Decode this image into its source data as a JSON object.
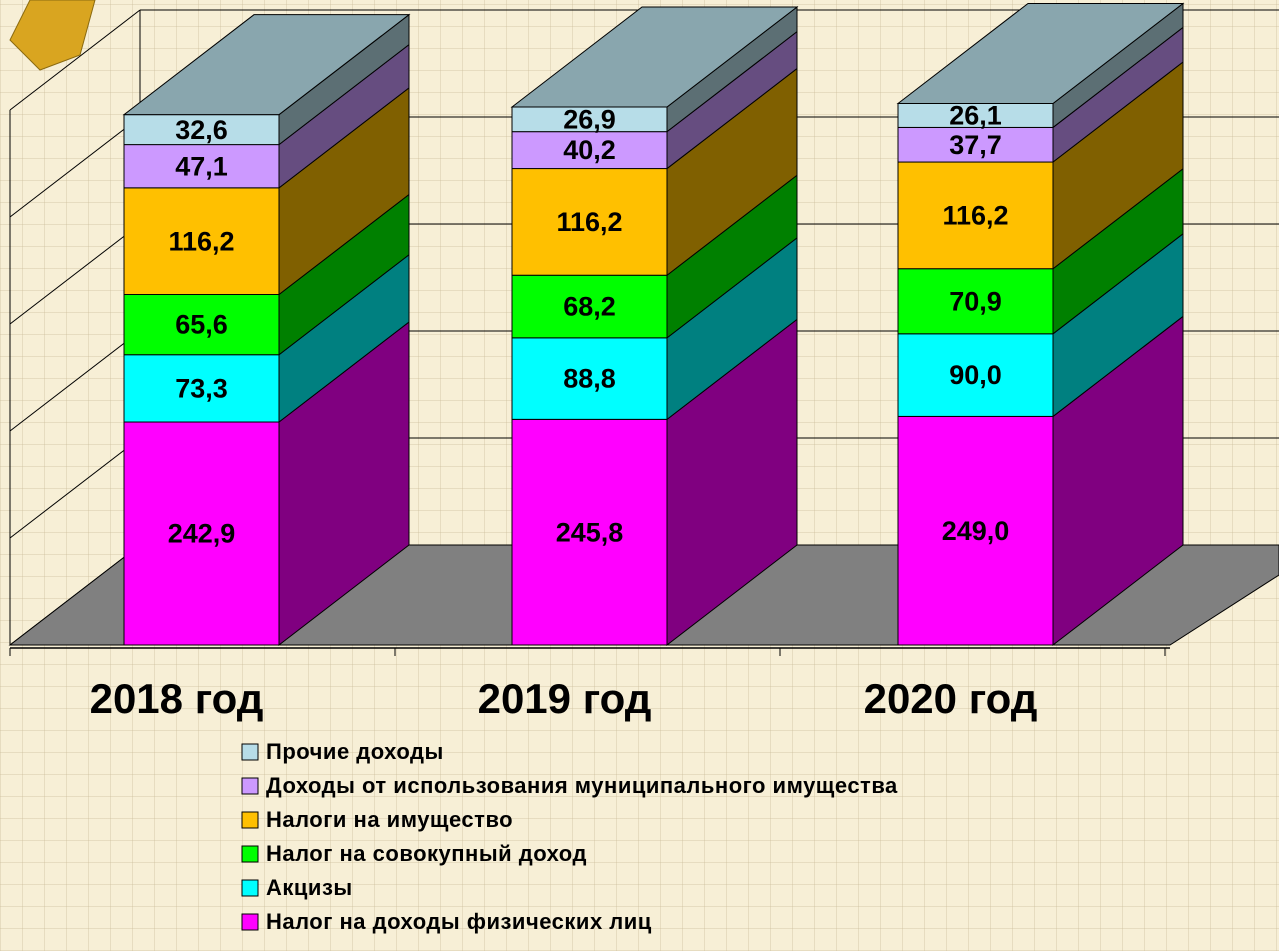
{
  "chart_data": {
    "type": "bar3d_stacked",
    "categories": [
      "2018 год",
      "2019 год",
      "2020 год"
    ],
    "series": [
      {
        "name": "Прочие доходы",
        "color": "#b7dde8",
        "values": [
          32.6,
          26.9,
          26.1
        ],
        "value_labels": [
          "32,6",
          "26,9",
          "26,1"
        ]
      },
      {
        "name": "Доходы от использования муниципального имущества",
        "color": "#cc99ff",
        "values": [
          47.1,
          40.2,
          37.7
        ],
        "value_labels": [
          "47,1",
          "40,2",
          "37,7"
        ]
      },
      {
        "name": "Налоги на имущество",
        "color": "#ffc000",
        "values": [
          116.2,
          116.2,
          116.2
        ],
        "value_labels": [
          "116,2",
          "116,2",
          "116,2"
        ]
      },
      {
        "name": "Налог на совокупный доход",
        "color": "#00ff00",
        "values": [
          65.6,
          68.2,
          70.9
        ],
        "value_labels": [
          "65,6",
          "68,2",
          "70,9"
        ]
      },
      {
        "name": "Акцизы",
        "color": "#00ffff",
        "values": [
          73.3,
          88.8,
          90.0
        ],
        "value_labels": [
          "73,3",
          "88,8",
          "90,0"
        ]
      },
      {
        "name": "Налог на доходы физических лиц",
        "color": "#ff00ff",
        "values": [
          242.9,
          245.8,
          249.0
        ],
        "value_labels": [
          "242,9",
          "245,8",
          "249,0"
        ]
      }
    ],
    "ylim": [
      0,
      700
    ]
  }
}
